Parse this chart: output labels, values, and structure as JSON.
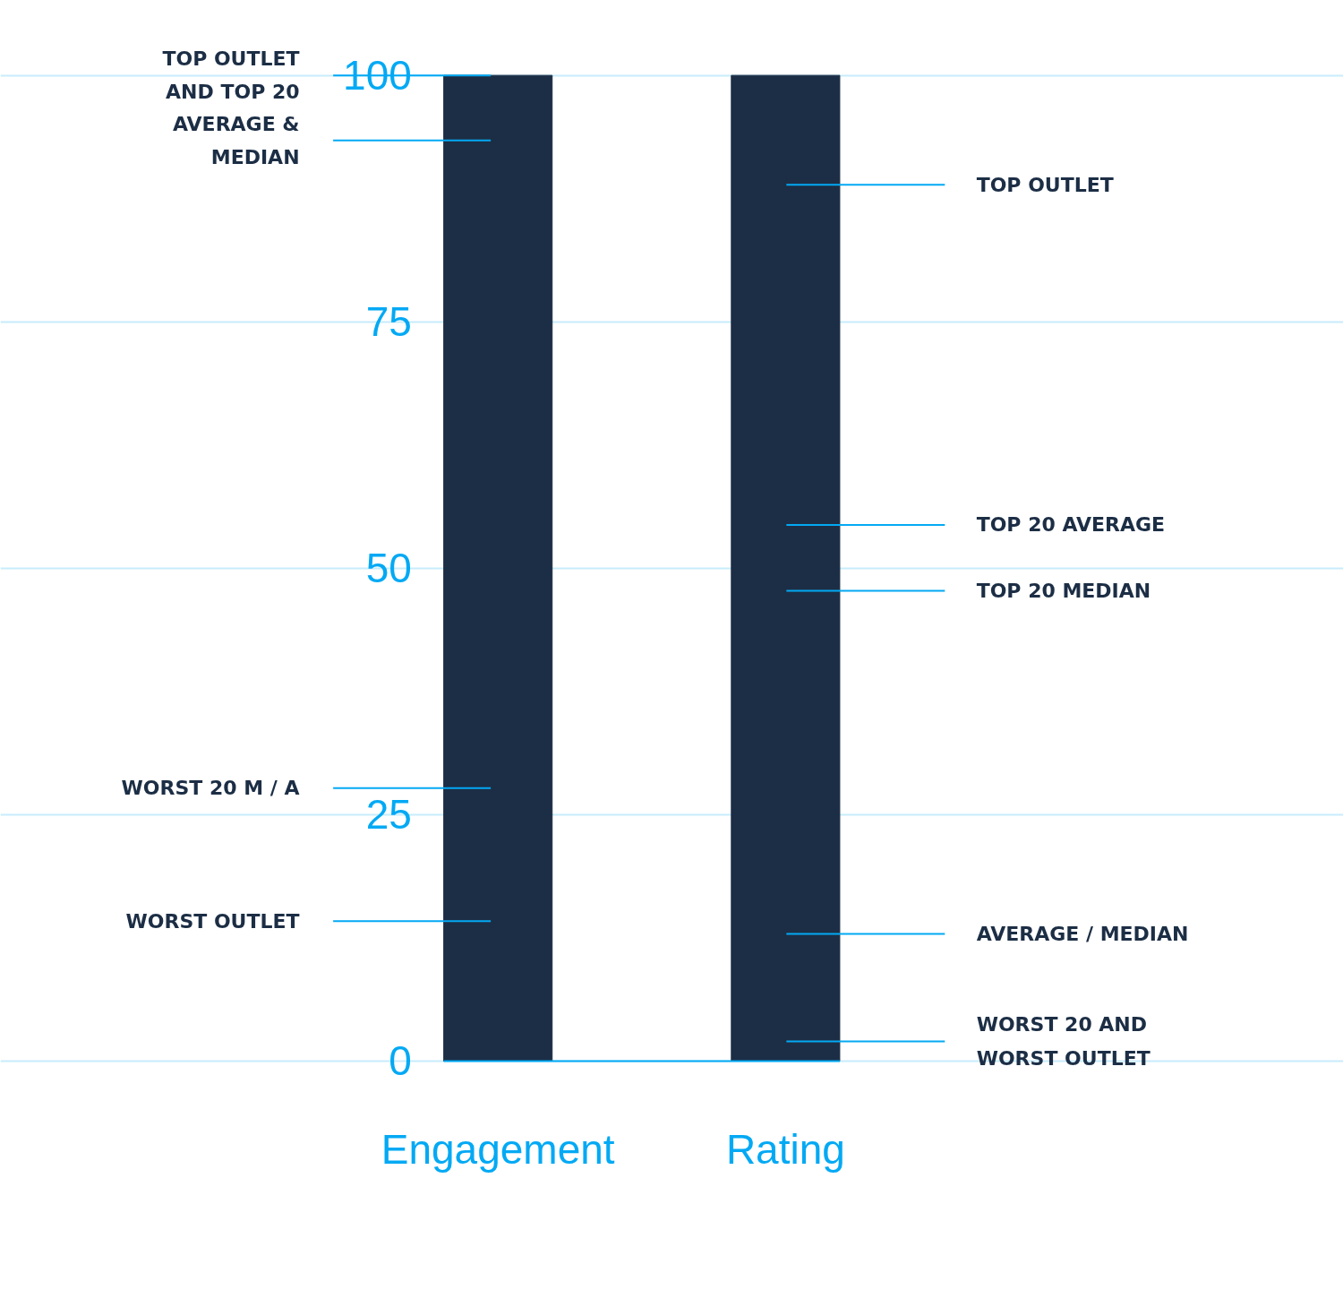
{
  "chart_data": {
    "type": "bar",
    "categories": [
      "Engagement",
      "Rating"
    ],
    "values": [
      100,
      100
    ],
    "color": "#1c2e45",
    "ylim": [
      0,
      100
    ],
    "yticks": [
      0,
      25,
      50,
      75,
      100
    ],
    "grid": "y",
    "ref_lines": [
      {
        "axis": "y",
        "value": 100,
        "label": "TOP OUTLET\nAND TOP 20",
        "color": "#03a9f4"
      },
      {
        "axis": "y",
        "value": 93.4,
        "label": "AVERAGE &\nMEDIAN",
        "color": "#03a9f4"
      },
      {
        "axis": "y",
        "value": 27.7,
        "label": "WORST 20 M / A",
        "color": "#03a9f4"
      },
      {
        "axis": "y",
        "value": 14.2,
        "label": "WORST OUTLET",
        "color": "#03a9f4"
      },
      {
        "axis": "y",
        "value": 88.9,
        "label": "TOP OUTLET",
        "color": "#03a9f4"
      },
      {
        "axis": "y",
        "value": 54.4,
        "label": "TOP 20 AVERAGE",
        "color": "#03a9f4"
      },
      {
        "axis": "y",
        "value": 47.7,
        "label": "TOP 20 MEDIAN",
        "color": "#03a9f4"
      },
      {
        "axis": "y",
        "value": 12.9,
        "label": "AVERAGE / MEDIAN",
        "color": "#03a9f4"
      },
      {
        "axis": "y",
        "value": 2.0,
        "label": "WORST 20 AND\nWORST OUTLET",
        "color": "#03a9f4"
      }
    ]
  }
}
